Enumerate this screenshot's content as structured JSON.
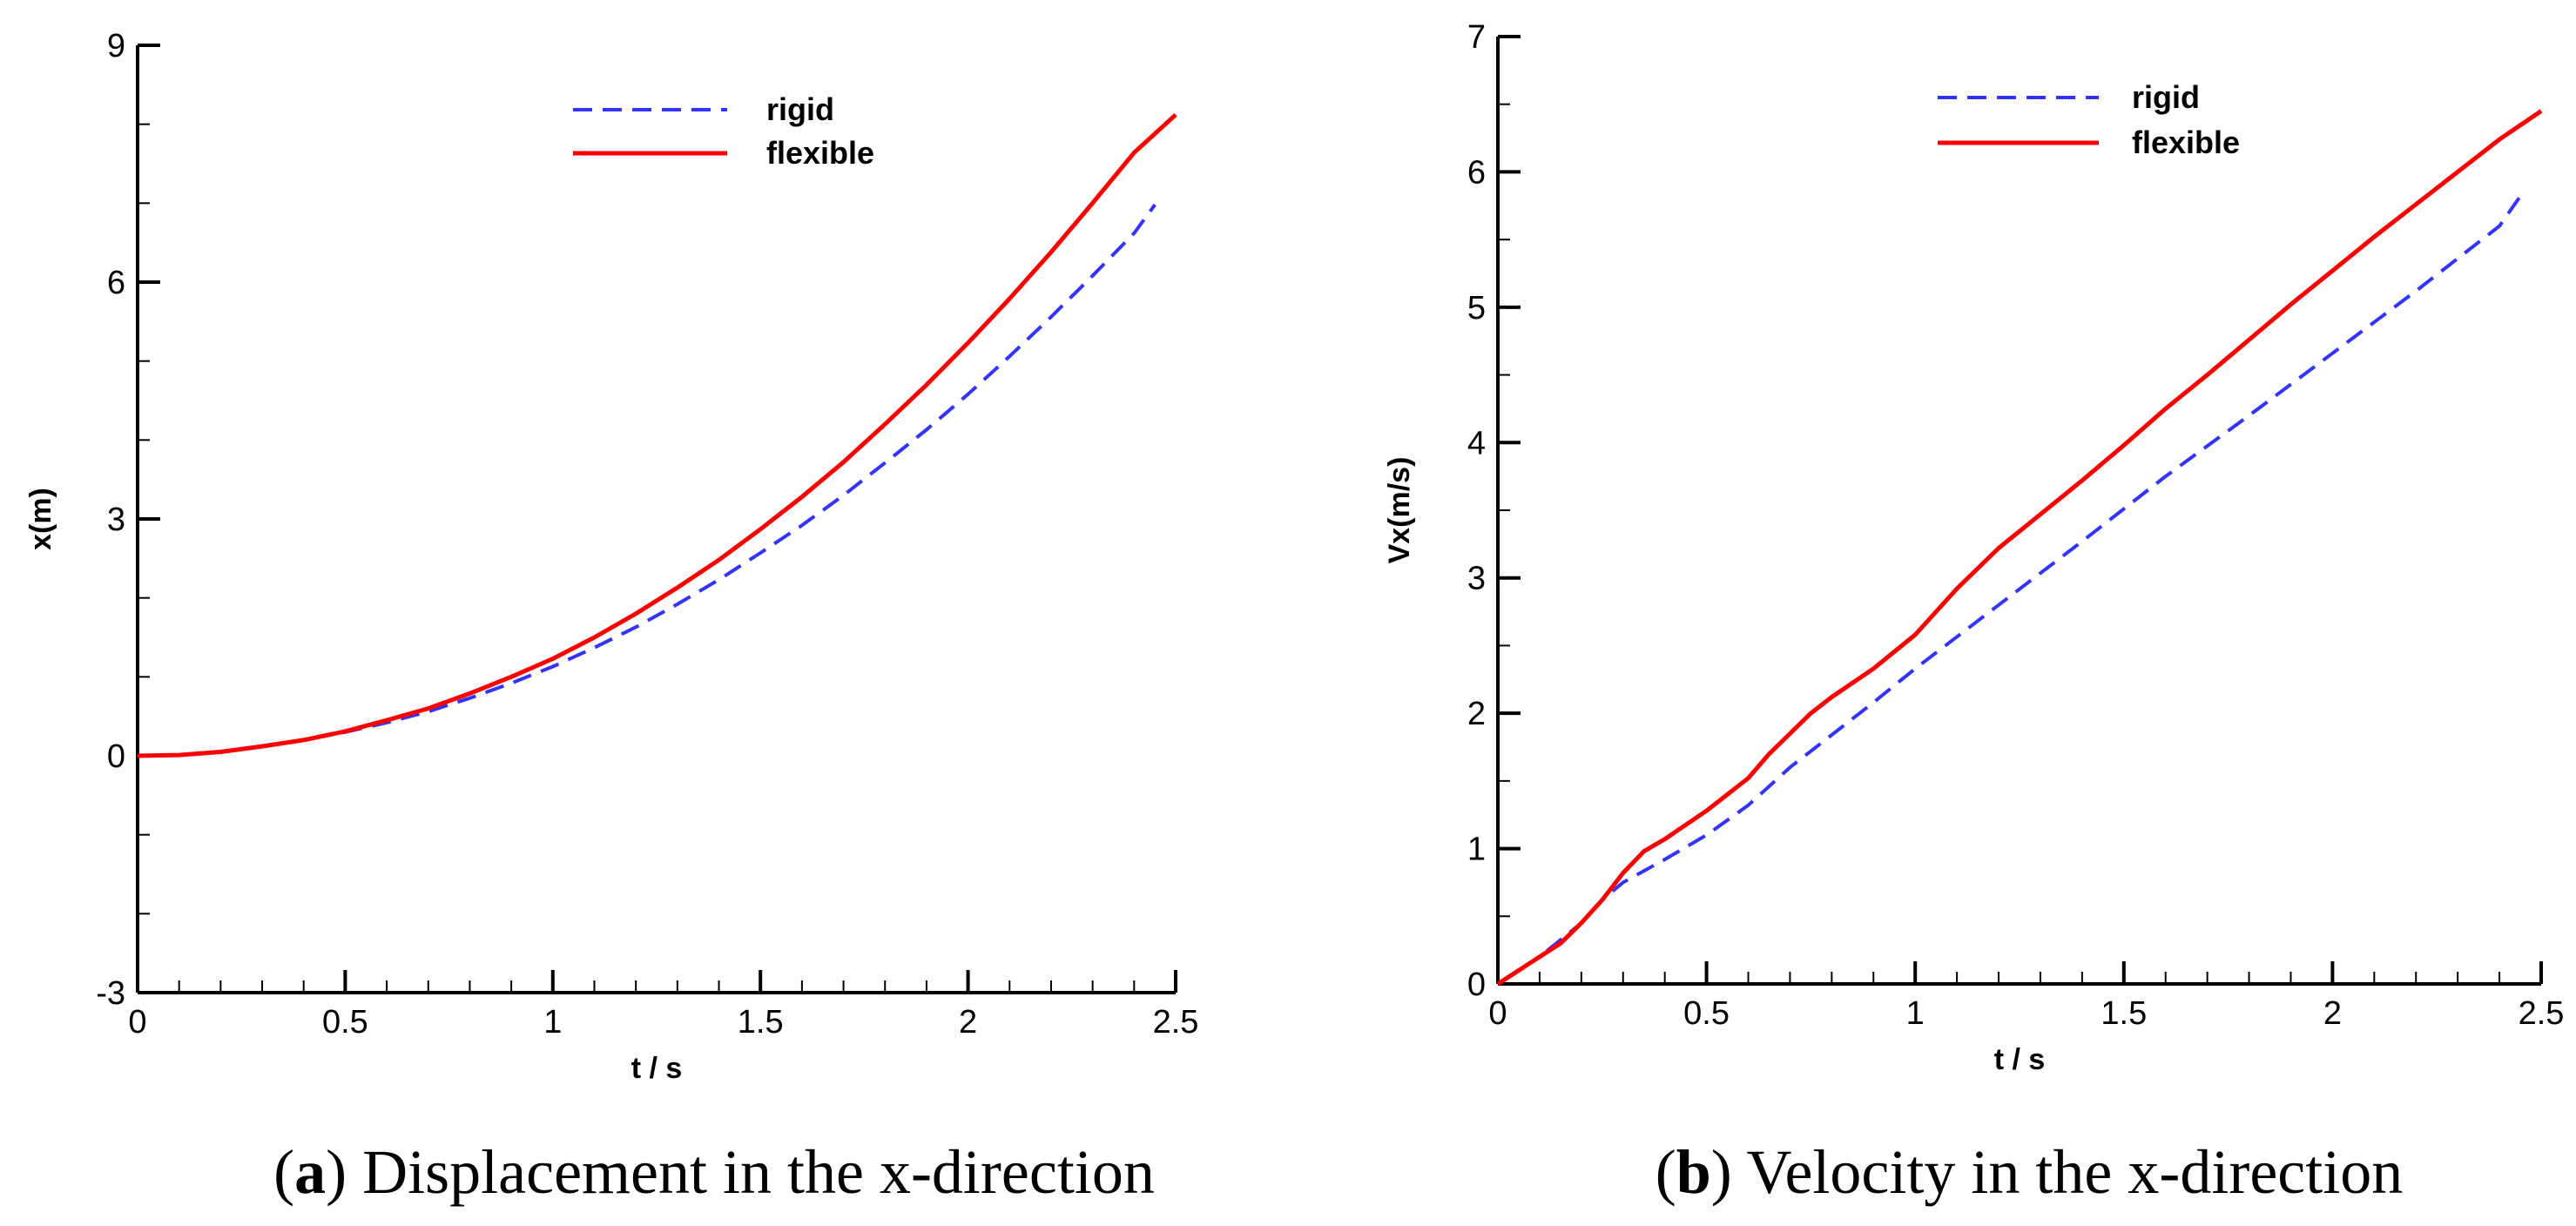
{
  "chart_data": [
    {
      "id": "a",
      "type": "line",
      "caption_letter": "a",
      "caption_text": "Displacement in the x-direction",
      "caption_open": "(",
      "caption_close": ")",
      "xlabel": "t / s",
      "ylabel": "x(m)",
      "xlim": [
        0,
        2.5
      ],
      "ylim": [
        -3,
        9
      ],
      "xticks": [
        0,
        0.5,
        1,
        1.5,
        2,
        2.5
      ],
      "xtick_labels": [
        "0",
        "0.5",
        "1",
        "1.5",
        "2",
        "2.5"
      ],
      "yticks": [
        -3,
        0,
        3,
        6,
        9
      ],
      "ytick_labels": [
        "-3",
        "0",
        "3",
        "6",
        "9"
      ],
      "x_minor_step": 0.1,
      "y_minor_step": 1,
      "legend_position": "top-center",
      "series": [
        {
          "name": "rigid",
          "color": "#3333ff",
          "style": "dashed",
          "x": [
            0,
            0.1,
            0.2,
            0.3,
            0.4,
            0.5,
            0.6,
            0.7,
            0.8,
            0.9,
            1.0,
            1.1,
            1.2,
            1.3,
            1.4,
            1.5,
            1.6,
            1.7,
            1.8,
            1.9,
            2.0,
            2.1,
            2.2,
            2.3,
            2.4,
            2.45
          ],
          "y": [
            0,
            0.01,
            0.05,
            0.12,
            0.2,
            0.3,
            0.42,
            0.56,
            0.73,
            0.92,
            1.13,
            1.37,
            1.63,
            1.92,
            2.23,
            2.57,
            2.92,
            3.3,
            3.71,
            4.13,
            4.58,
            5.06,
            5.56,
            6.08,
            6.62,
            6.98
          ]
        },
        {
          "name": "flexible",
          "color": "#ff0000",
          "style": "solid",
          "x": [
            0,
            0.1,
            0.2,
            0.3,
            0.4,
            0.5,
            0.6,
            0.7,
            0.8,
            0.9,
            1.0,
            1.1,
            1.2,
            1.3,
            1.4,
            1.5,
            1.6,
            1.7,
            1.8,
            1.9,
            2.0,
            2.1,
            2.2,
            2.3,
            2.4,
            2.5
          ],
          "y": [
            0,
            0.01,
            0.05,
            0.12,
            0.2,
            0.31,
            0.45,
            0.6,
            0.79,
            1.0,
            1.23,
            1.5,
            1.8,
            2.13,
            2.48,
            2.87,
            3.28,
            3.72,
            4.2,
            4.7,
            5.23,
            5.79,
            6.38,
            7.0,
            7.64,
            8.12
          ]
        }
      ]
    },
    {
      "id": "b",
      "type": "line",
      "caption_letter": "b",
      "caption_text": "Velocity in the x-direction",
      "caption_open": "(",
      "caption_close": ")",
      "xlabel": "t / s",
      "ylabel": "Vx(m/s)",
      "xlim": [
        0,
        2.5
      ],
      "ylim": [
        0,
        7
      ],
      "xticks": [
        0,
        0.5,
        1,
        1.5,
        2,
        2.5
      ],
      "xtick_labels": [
        "0",
        "0.5",
        "1",
        "1.5",
        "2",
        "2.5"
      ],
      "yticks": [
        0,
        1,
        2,
        3,
        4,
        5,
        6,
        7
      ],
      "ytick_labels": [
        "0",
        "1",
        "2",
        "3",
        "4",
        "5",
        "6",
        "7"
      ],
      "x_minor_step": 0.1,
      "y_minor_step": 0.5,
      "legend_position": "top-center",
      "series": [
        {
          "name": "rigid",
          "color": "#3333ff",
          "style": "dashed",
          "x": [
            0,
            0.1,
            0.2,
            0.25,
            0.3,
            0.4,
            0.5,
            0.6,
            0.7,
            0.8,
            0.9,
            1.0,
            1.2,
            1.4,
            1.6,
            1.8,
            2.0,
            2.2,
            2.4,
            2.45
          ],
          "y": [
            0,
            0.2,
            0.45,
            0.62,
            0.75,
            0.92,
            1.1,
            1.32,
            1.6,
            1.84,
            2.08,
            2.33,
            2.8,
            3.27,
            3.75,
            4.2,
            4.66,
            5.12,
            5.6,
            5.82
          ]
        },
        {
          "name": "flexible",
          "color": "#ff0000",
          "style": "solid",
          "x": [
            0,
            0.1,
            0.15,
            0.2,
            0.25,
            0.3,
            0.35,
            0.4,
            0.5,
            0.6,
            0.65,
            0.7,
            0.75,
            0.8,
            0.9,
            1.0,
            1.1,
            1.2,
            1.3,
            1.4,
            1.5,
            1.6,
            1.7,
            1.8,
            1.9,
            2.0,
            2.1,
            2.2,
            2.3,
            2.4,
            2.5
          ],
          "y": [
            0,
            0.2,
            0.3,
            0.45,
            0.62,
            0.82,
            0.98,
            1.07,
            1.28,
            1.52,
            1.7,
            1.85,
            2.0,
            2.12,
            2.33,
            2.58,
            2.92,
            3.22,
            3.47,
            3.72,
            3.98,
            4.25,
            4.5,
            4.76,
            5.02,
            5.27,
            5.52,
            5.76,
            6.0,
            6.24,
            6.45
          ]
        }
      ]
    }
  ]
}
